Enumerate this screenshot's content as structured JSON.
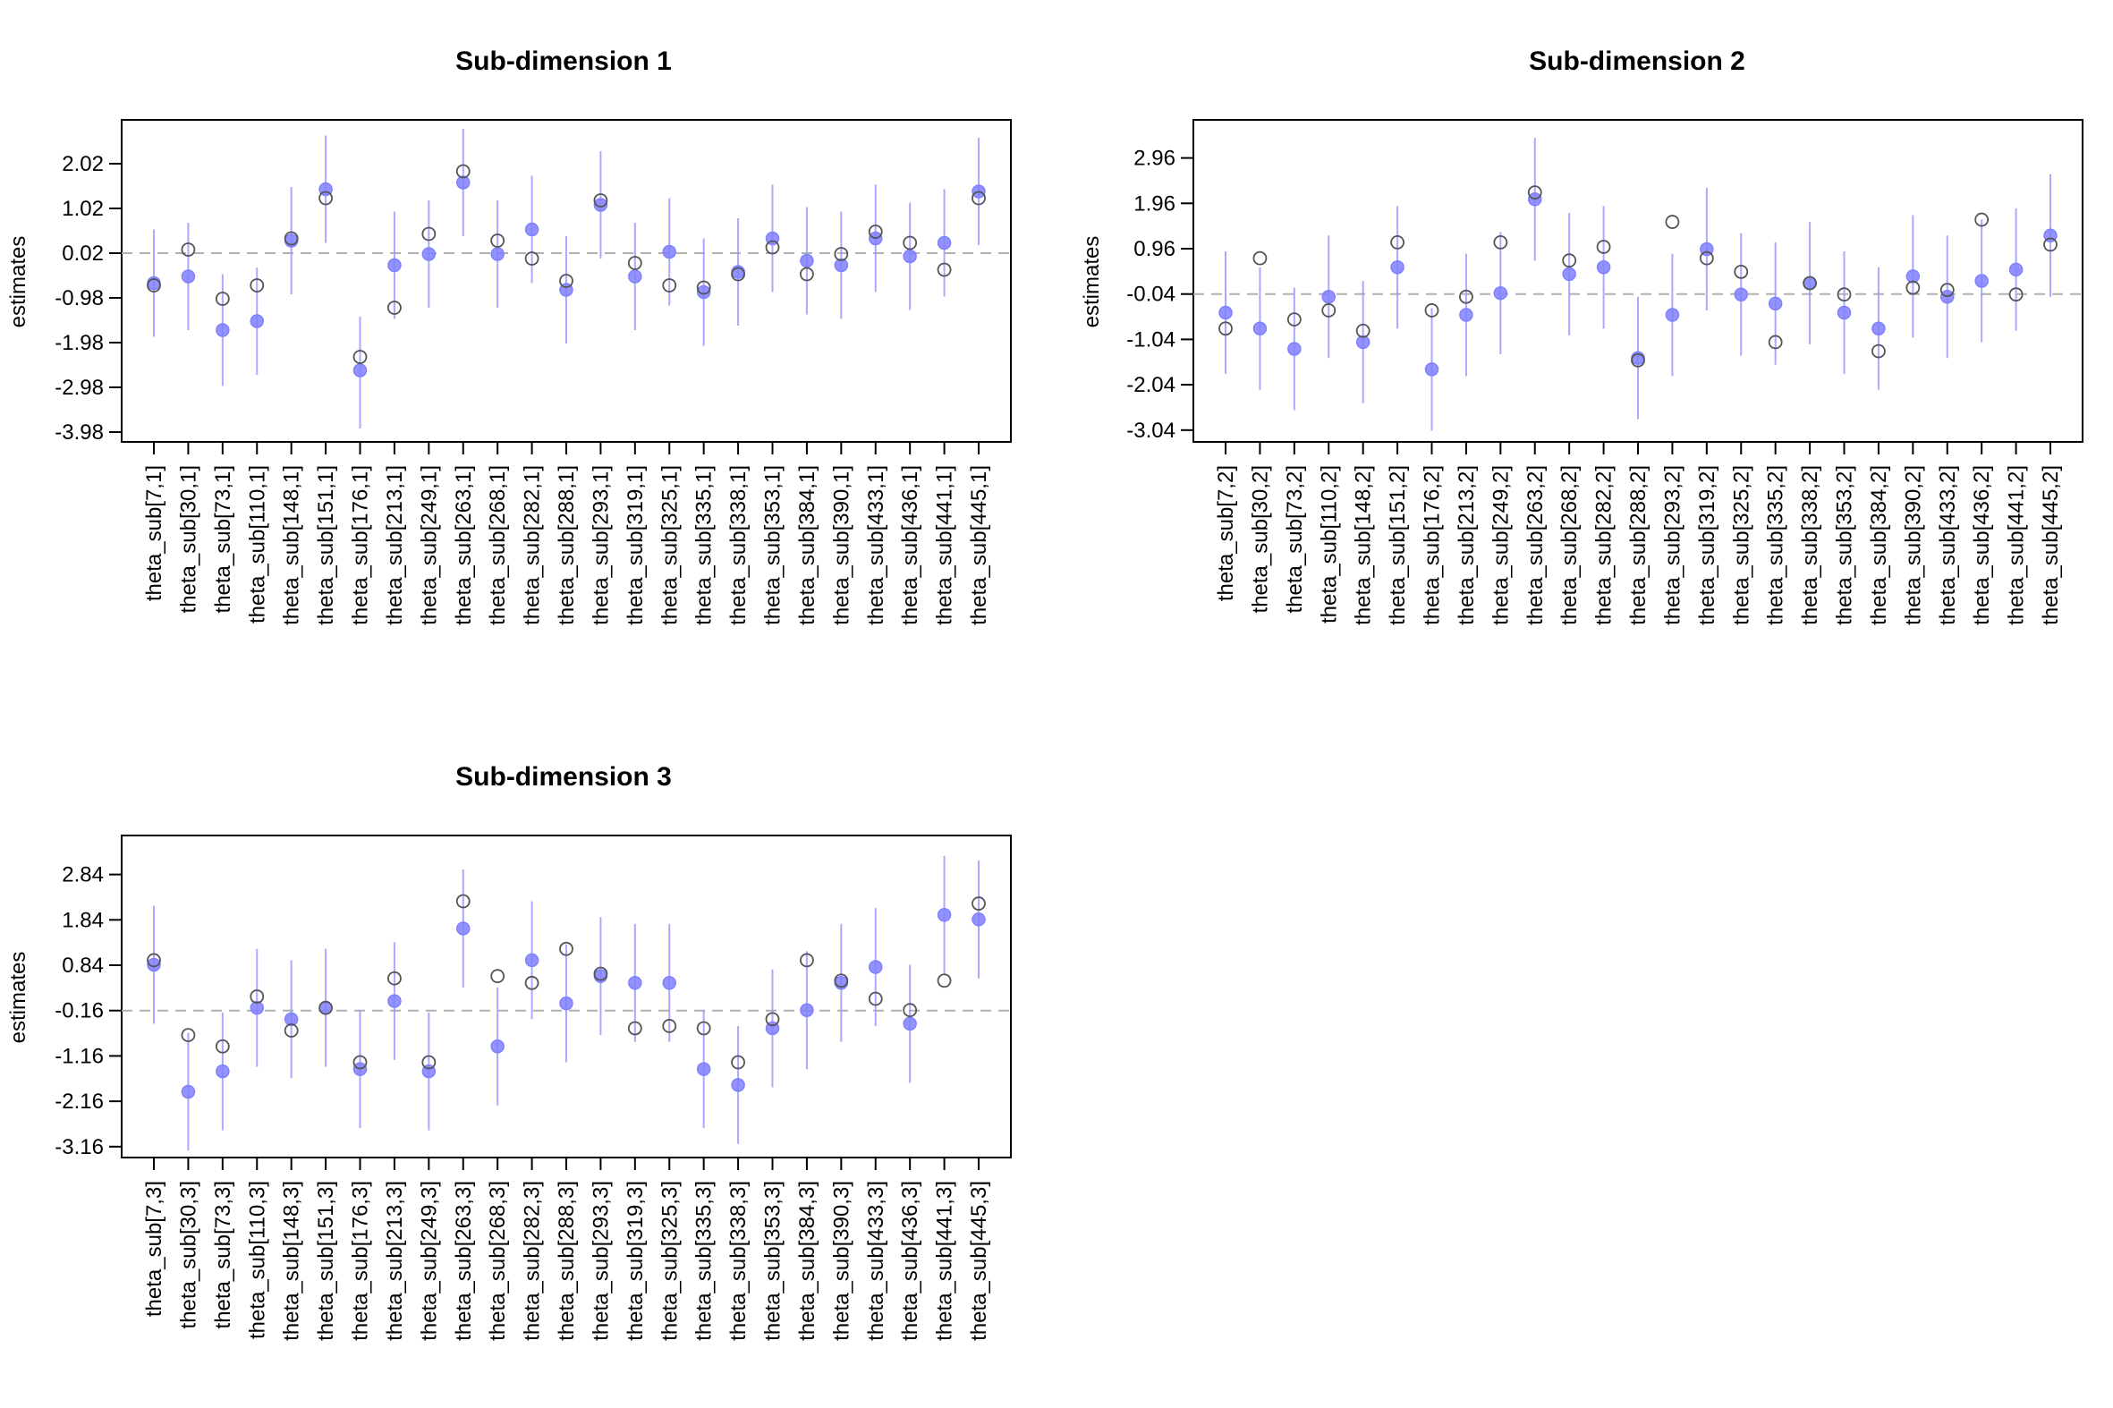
{
  "chart_data": [
    {
      "type": "scatter",
      "title": "Sub-dimension 1",
      "ylabel": "estimates",
      "xlabel": "",
      "yticks": [
        "2.02",
        "1.02",
        "0.02",
        "-0.98",
        "-1.98",
        "-2.98",
        "-3.98"
      ],
      "ylim": [
        -4.2,
        3.0
      ],
      "reference_line": 0.02,
      "grid": false,
      "categories": [
        "theta_sub[7,1]",
        "theta_sub[30,1]",
        "theta_sub[73,1]",
        "theta_sub[110,1]",
        "theta_sub[148,1]",
        "theta_sub[151,1]",
        "theta_sub[176,1]",
        "theta_sub[213,1]",
        "theta_sub[249,1]",
        "theta_sub[263,1]",
        "theta_sub[268,1]",
        "theta_sub[282,1]",
        "theta_sub[288,1]",
        "theta_sub[293,1]",
        "theta_sub[319,1]",
        "theta_sub[325,1]",
        "theta_sub[335,1]",
        "theta_sub[338,1]",
        "theta_sub[353,1]",
        "theta_sub[384,1]",
        "theta_sub[390,1]",
        "theta_sub[433,1]",
        "theta_sub[436,1]",
        "theta_sub[441,1]",
        "theta_sub[445,1]"
      ],
      "estimates": [
        -0.65,
        -0.5,
        -1.7,
        -1.5,
        0.3,
        1.45,
        -2.6,
        -0.25,
        0.0,
        1.6,
        0.0,
        0.55,
        -0.8,
        1.1,
        -0.5,
        0.05,
        -0.85,
        -0.4,
        0.35,
        -0.15,
        -0.25,
        0.35,
        -0.05,
        0.25,
        1.4
      ],
      "lower": [
        -1.85,
        -1.7,
        -2.95,
        -2.7,
        -0.9,
        0.25,
        -3.9,
        -1.45,
        -1.2,
        0.4,
        -1.2,
        -0.65,
        -2.0,
        -0.1,
        -1.7,
        -1.15,
        -2.05,
        -1.6,
        -0.85,
        -1.35,
        -1.45,
        -0.85,
        -1.25,
        -0.95,
        0.2
      ],
      "upper": [
        0.55,
        0.7,
        -0.45,
        -0.3,
        1.5,
        2.65,
        -1.4,
        0.95,
        1.2,
        2.8,
        1.2,
        1.75,
        0.4,
        2.3,
        0.7,
        1.25,
        0.35,
        0.8,
        1.55,
        1.05,
        0.95,
        1.55,
        1.15,
        1.45,
        2.6
      ],
      "true_values": [
        -0.7,
        0.1,
        -1.0,
        -0.7,
        0.35,
        1.25,
        -2.3,
        -1.2,
        0.45,
        1.85,
        0.3,
        -0.1,
        -0.6,
        1.2,
        -0.2,
        -0.7,
        -0.75,
        -0.45,
        0.15,
        -0.45,
        0.0,
        0.5,
        0.25,
        -0.35,
        1.25
      ]
    },
    {
      "type": "scatter",
      "title": "Sub-dimension 2",
      "ylabel": "estimates",
      "xlabel": "",
      "yticks": [
        "2.96",
        "1.96",
        "0.96",
        "-0.04",
        "-1.04",
        "-2.04",
        "-3.04"
      ],
      "ylim": [
        -3.3,
        3.8
      ],
      "reference_line": -0.04,
      "grid": false,
      "categories": [
        "theta_sub[7,2]",
        "theta_sub[30,2]",
        "theta_sub[73,2]",
        "theta_sub[110,2]",
        "theta_sub[148,2]",
        "theta_sub[151,2]",
        "theta_sub[176,2]",
        "theta_sub[213,2]",
        "theta_sub[249,2]",
        "theta_sub[263,2]",
        "theta_sub[268,2]",
        "theta_sub[282,2]",
        "theta_sub[288,2]",
        "theta_sub[293,2]",
        "theta_sub[319,2]",
        "theta_sub[325,2]",
        "theta_sub[335,2]",
        "theta_sub[338,2]",
        "theta_sub[353,2]",
        "theta_sub[384,2]",
        "theta_sub[390,2]",
        "theta_sub[433,2]",
        "theta_sub[436,2]",
        "theta_sub[441,2]",
        "theta_sub[445,2]"
      ],
      "estimates": [
        -0.45,
        -0.8,
        -1.25,
        -0.1,
        -1.1,
        0.55,
        -1.7,
        -0.5,
        -0.02,
        2.05,
        0.4,
        0.55,
        -1.45,
        -0.5,
        0.95,
        -0.05,
        -0.25,
        0.2,
        -0.45,
        -0.8,
        0.35,
        -0.1,
        0.25,
        0.5,
        1.25
      ],
      "lower": [
        -1.8,
        -2.15,
        -2.6,
        -1.45,
        -2.45,
        -0.8,
        -3.05,
        -1.85,
        -1.37,
        0.7,
        -0.95,
        -0.8,
        -2.8,
        -1.85,
        -0.4,
        -1.4,
        -1.6,
        -1.15,
        -1.8,
        -2.15,
        -1.0,
        -1.45,
        -1.1,
        -0.85,
        -0.1
      ],
      "upper": [
        0.9,
        0.55,
        0.1,
        1.25,
        0.25,
        1.9,
        -0.35,
        0.85,
        1.33,
        3.4,
        1.75,
        1.9,
        -0.1,
        0.85,
        2.3,
        1.3,
        1.1,
        1.55,
        0.9,
        0.55,
        1.7,
        1.25,
        1.6,
        1.85,
        2.6
      ],
      "true_values": [
        -0.8,
        0.75,
        -0.6,
        -0.4,
        -0.85,
        1.1,
        -0.4,
        -0.1,
        1.1,
        2.2,
        0.7,
        1.0,
        -1.5,
        1.55,
        0.75,
        0.45,
        -1.1,
        0.2,
        -0.05,
        -1.3,
        0.1,
        0.05,
        1.6,
        -0.05,
        1.05
      ]
    },
    {
      "type": "scatter",
      "title": "Sub-dimension 3",
      "ylabel": "estimates",
      "xlabel": "",
      "yticks": [
        "2.84",
        "1.84",
        "0.84",
        "-0.16",
        "-1.16",
        "-2.16",
        "-3.16"
      ],
      "ylim": [
        -3.4,
        3.7
      ],
      "reference_line": -0.16,
      "grid": false,
      "categories": [
        "theta_sub[7,3]",
        "theta_sub[30,3]",
        "theta_sub[73,3]",
        "theta_sub[110,3]",
        "theta_sub[148,3]",
        "theta_sub[151,3]",
        "theta_sub[176,3]",
        "theta_sub[213,3]",
        "theta_sub[249,3]",
        "theta_sub[263,3]",
        "theta_sub[268,3]",
        "theta_sub[282,3]",
        "theta_sub[288,3]",
        "theta_sub[293,3]",
        "theta_sub[319,3]",
        "theta_sub[325,3]",
        "theta_sub[335,3]",
        "theta_sub[338,3]",
        "theta_sub[353,3]",
        "theta_sub[384,3]",
        "theta_sub[390,3]",
        "theta_sub[433,3]",
        "theta_sub[436,3]",
        "theta_sub[441,3]",
        "theta_sub[445,3]"
      ],
      "estimates": [
        0.85,
        -1.95,
        -1.5,
        -0.1,
        -0.35,
        -0.1,
        -1.45,
        0.05,
        -1.5,
        1.65,
        -0.95,
        0.95,
        0.0,
        0.6,
        0.45,
        0.45,
        -1.45,
        -1.8,
        -0.55,
        -0.15,
        0.45,
        0.8,
        -0.45,
        1.95,
        1.85
      ],
      "lower": [
        -0.45,
        -3.25,
        -2.8,
        -1.4,
        -1.65,
        -1.4,
        -2.75,
        -1.25,
        -2.8,
        0.35,
        -2.25,
        -0.35,
        -1.3,
        -0.7,
        -0.85,
        -0.85,
        -2.75,
        -3.1,
        -1.85,
        -1.45,
        -0.85,
        -0.5,
        -1.75,
        0.65,
        0.55
      ],
      "upper": [
        2.15,
        -0.65,
        -0.2,
        1.2,
        0.95,
        1.2,
        -0.15,
        1.35,
        -0.2,
        2.95,
        0.35,
        2.25,
        1.3,
        1.9,
        1.75,
        1.75,
        -0.15,
        -0.5,
        0.75,
        1.15,
        1.75,
        2.1,
        0.85,
        3.25,
        3.15
      ],
      "true_values": [
        0.95,
        -0.7,
        -0.95,
        0.15,
        -0.6,
        -0.1,
        -1.3,
        0.55,
        -1.3,
        2.25,
        0.6,
        0.45,
        1.2,
        0.65,
        -0.55,
        -0.5,
        -0.55,
        -1.3,
        -0.35,
        0.95,
        0.5,
        0.1,
        -0.15,
        0.5,
        2.2
      ]
    }
  ],
  "colors": {
    "estimate": "#8080ff",
    "interval": "#9a9aff",
    "true_value": "#555555",
    "reference_line": "#b0b0b0",
    "axis": "#000000"
  }
}
